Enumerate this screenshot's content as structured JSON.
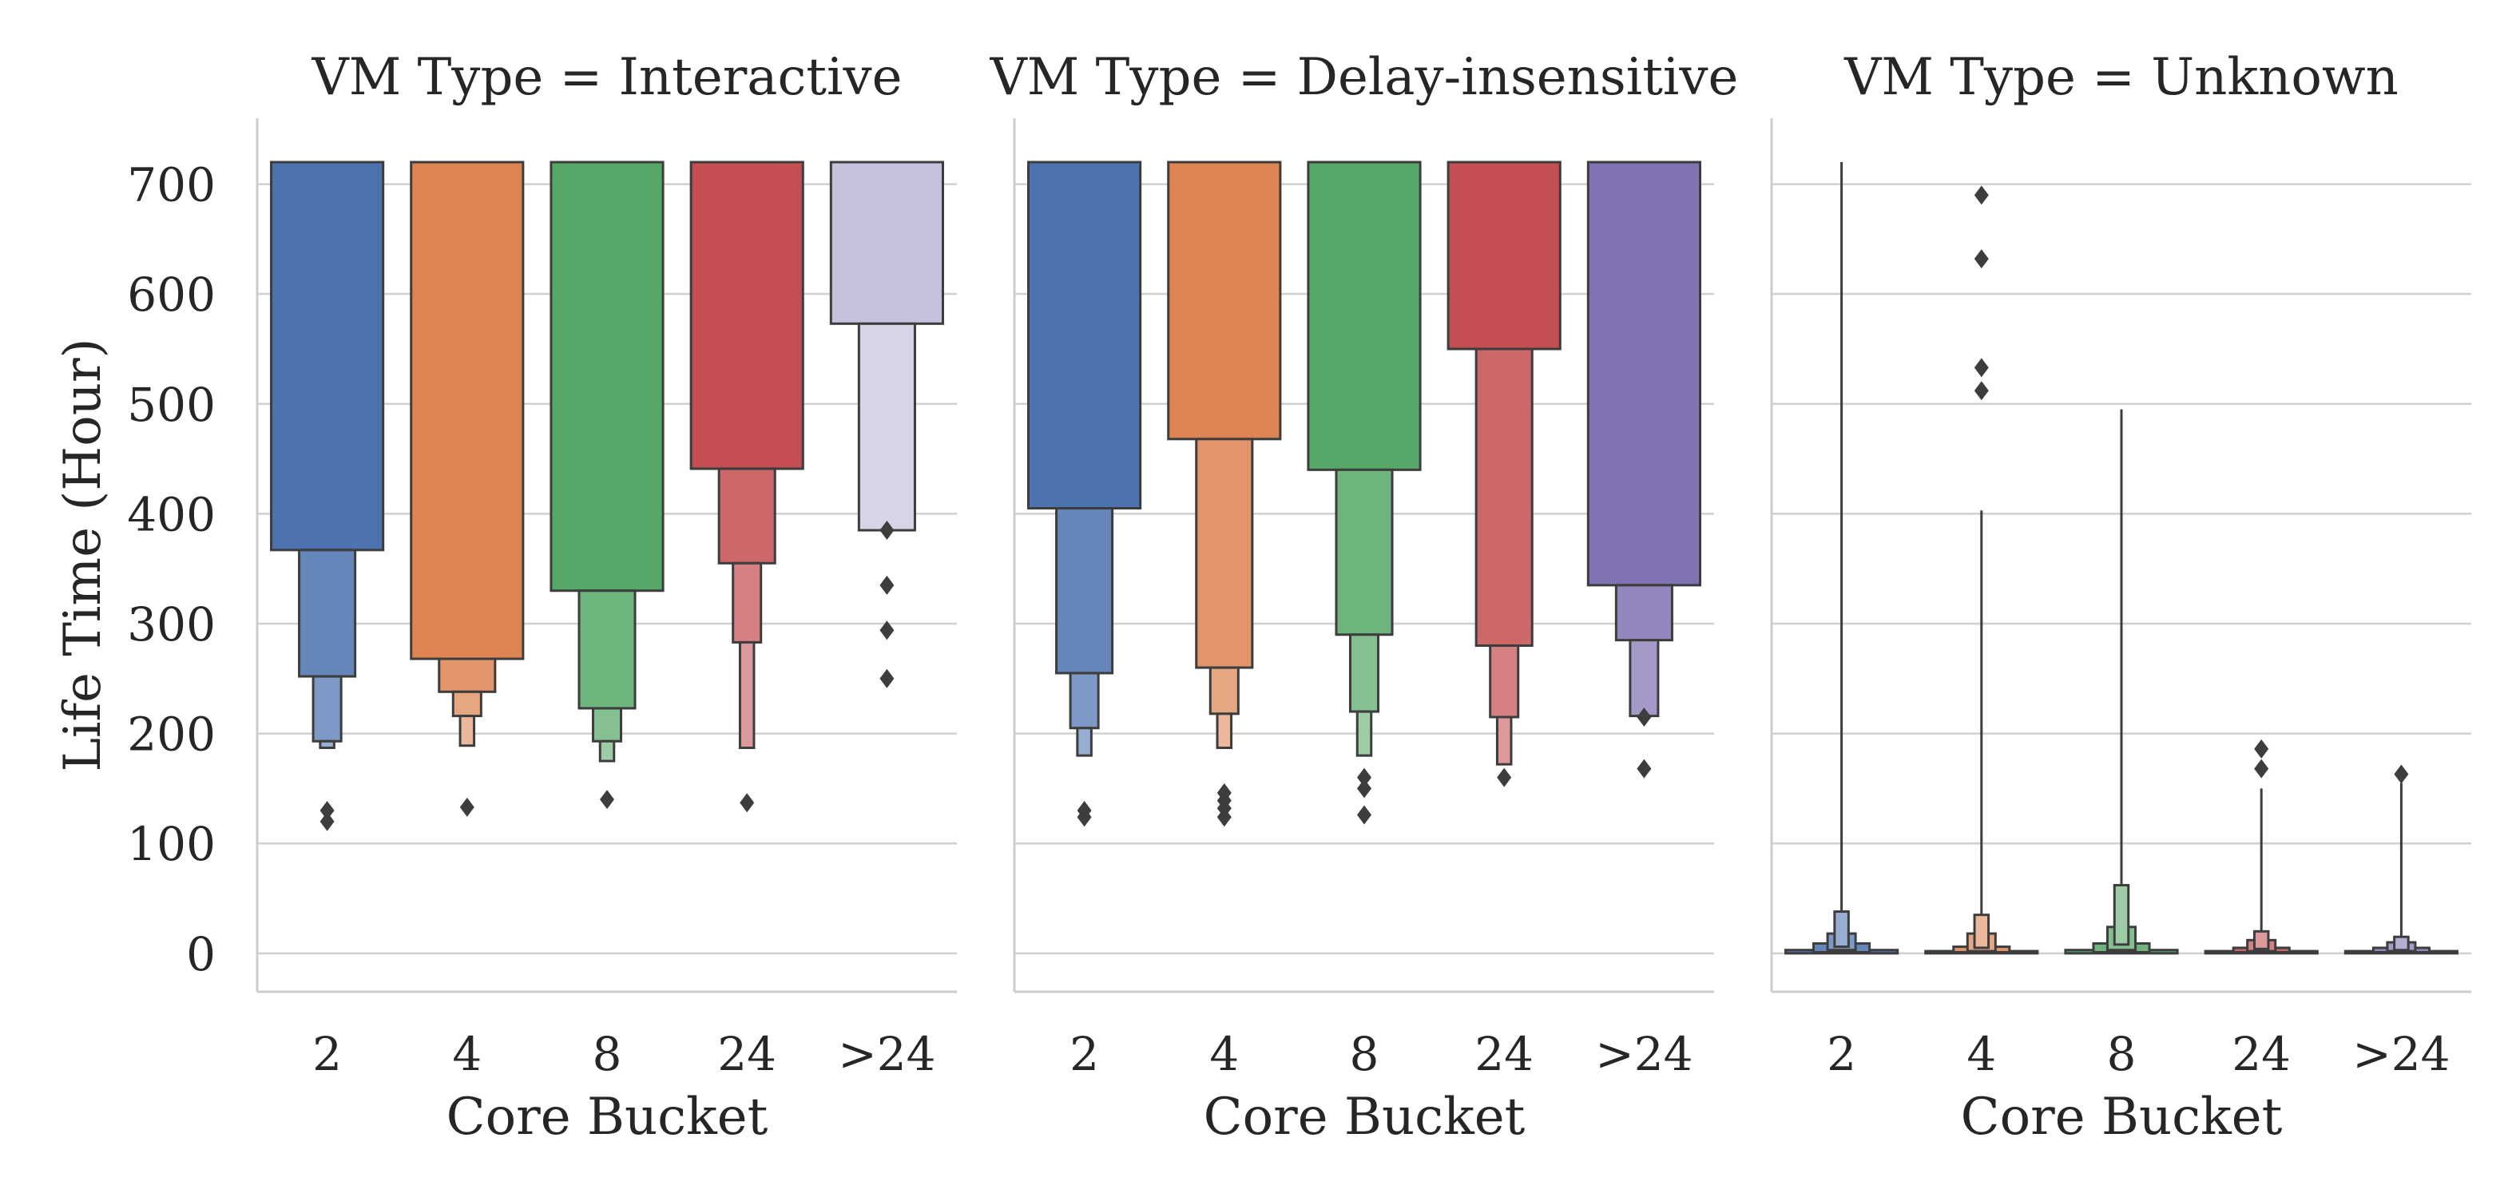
{
  "chart_data": {
    "type": "boxen",
    "ylabel": "Life Time (Hour)",
    "xlabel": "Core Bucket",
    "ylim": [
      -35,
      760
    ],
    "yticks": [
      0,
      100,
      200,
      300,
      400,
      500,
      600,
      700
    ],
    "grid": "horizontal",
    "categories": [
      "2",
      "4",
      "8",
      "24",
      ">24"
    ],
    "palette": [
      "#4c72b0",
      "#dd8452",
      "#55a868",
      "#c44e52",
      "#8172b3"
    ],
    "panels": [
      {
        "title": "VM Type = Interactive",
        "boxes": [
          {
            "category": "2",
            "boxes": [
              [
                367,
                720
              ],
              [
                252,
                367
              ],
              [
                193,
                252
              ],
              [
                187,
                193
              ]
            ],
            "outliers": [
              130,
              120
            ]
          },
          {
            "category": "4",
            "boxes": [
              [
                268,
                720
              ],
              [
                238,
                268
              ],
              [
                216,
                238
              ],
              [
                189,
                216
              ]
            ],
            "outliers": [
              133
            ]
          },
          {
            "category": "8",
            "boxes": [
              [
                330,
                720
              ],
              [
                223,
                330
              ],
              [
                193,
                223
              ],
              [
                175,
                193
              ]
            ],
            "outliers": [
              140
            ]
          },
          {
            "category": "24",
            "boxes": [
              [
                441,
                720
              ],
              [
                355,
                441
              ],
              [
                283,
                355
              ],
              [
                187,
                283
              ]
            ],
            "outliers": [
              137
            ]
          },
          {
            "category": ">24",
            "boxes": [
              [
                573,
                720
              ],
              [
                385,
                573
              ]
            ],
            "outliers": [
              385,
              335,
              294,
              250
            ]
          }
        ]
      },
      {
        "title": "VM Type = Delay-insensitive",
        "boxes": [
          {
            "category": "2",
            "boxes": [
              [
                405,
                720
              ],
              [
                255,
                405
              ],
              [
                205,
                255
              ],
              [
                180,
                205
              ]
            ],
            "outliers": [
              130,
              124
            ]
          },
          {
            "category": "4",
            "boxes": [
              [
                468,
                720
              ],
              [
                260,
                468
              ],
              [
                218,
                260
              ],
              [
                187,
                218
              ]
            ],
            "outliers": [
              146,
              139,
              132,
              124
            ]
          },
          {
            "category": "8",
            "boxes": [
              [
                440,
                720
              ],
              [
                290,
                440
              ],
              [
                220,
                290
              ],
              [
                180,
                220
              ]
            ],
            "outliers": [
              160,
              150,
              126
            ]
          },
          {
            "category": "24",
            "boxes": [
              [
                550,
                720
              ],
              [
                280,
                550
              ],
              [
                215,
                280
              ],
              [
                172,
                215
              ]
            ],
            "outliers": [
              160
            ]
          },
          {
            "category": ">24",
            "boxes": [
              [
                335,
                720
              ],
              [
                285,
                335
              ],
              [
                216,
                285
              ]
            ],
            "outliers": [
              215,
              168
            ]
          }
        ]
      },
      {
        "title": "VM Type = Unknown",
        "boxes": [
          {
            "category": "2",
            "boxes": [
              [
                0,
                3
              ],
              [
                1,
                9
              ],
              [
                3,
                18
              ],
              [
                6,
                38
              ]
            ],
            "whisker": 720,
            "outliers": []
          },
          {
            "category": "4",
            "boxes": [
              [
                0,
                2
              ],
              [
                1,
                6
              ],
              [
                2,
                18
              ],
              [
                5,
                35
              ]
            ],
            "whisker": 403,
            "outliers": [
              690,
              632,
              533,
              512
            ]
          },
          {
            "category": "8",
            "boxes": [
              [
                0,
                3
              ],
              [
                1,
                9
              ],
              [
                3,
                24
              ],
              [
                8,
                62
              ]
            ],
            "whisker": 495,
            "outliers": []
          },
          {
            "category": "24",
            "boxes": [
              [
                0,
                2
              ],
              [
                1,
                5
              ],
              [
                2,
                12
              ],
              [
                4,
                20
              ]
            ],
            "whisker": 150,
            "outliers": [
              186,
              168
            ]
          },
          {
            "category": ">24",
            "boxes": [
              [
                0,
                2
              ],
              [
                1,
                5
              ],
              [
                2,
                10
              ],
              [
                3,
                15
              ]
            ],
            "whisker": 155,
            "outliers": [
              163
            ]
          }
        ]
      }
    ]
  }
}
